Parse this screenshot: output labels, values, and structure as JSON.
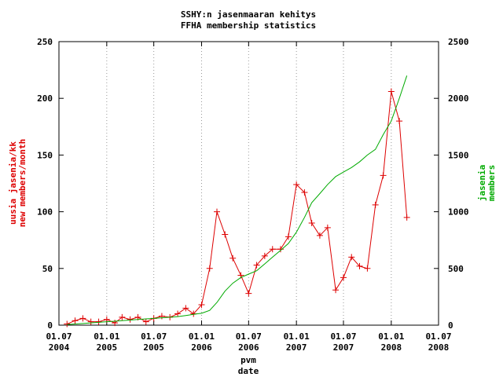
{
  "chart_data": {
    "type": "line",
    "title": "SSHY:n jasenmaaran kehitys",
    "subtitle": "FFHA membership statistics",
    "x_label": [
      "pvm",
      "date"
    ],
    "y_label": [
      "uusia jasenia/kk",
      "new members/month"
    ],
    "y2_label": [
      "jasenia",
      "members"
    ],
    "x": [
      "2004-08",
      "2004-09",
      "2004-10",
      "2004-11",
      "2004-12",
      "2005-01",
      "2005-02",
      "2005-03",
      "2005-04",
      "2005-05",
      "2005-06",
      "2005-07",
      "2005-08",
      "2005-09",
      "2005-10",
      "2005-11",
      "2005-12",
      "2006-01",
      "2006-02",
      "2006-03",
      "2006-04",
      "2006-05",
      "2006-06",
      "2006-07",
      "2006-08",
      "2006-09",
      "2006-10",
      "2006-11",
      "2006-12",
      "2007-01",
      "2007-02",
      "2007-03",
      "2007-04",
      "2007-05",
      "2007-06",
      "2007-07",
      "2007-08",
      "2007-09",
      "2007-10",
      "2007-11",
      "2007-12",
      "2008-01",
      "2008-02",
      "2008-03"
    ],
    "series": [
      {
        "name": "new members/month",
        "color": "#dd0000",
        "axis": "y",
        "values": [
          1,
          4,
          6,
          3,
          3,
          5,
          2,
          7,
          5,
          7,
          3,
          6,
          8,
          7,
          10,
          15,
          10,
          18,
          50,
          100,
          80,
          59,
          44,
          28,
          53,
          61,
          67,
          67,
          78,
          124,
          117,
          90,
          79,
          86,
          31,
          42,
          60,
          52,
          50,
          106,
          132,
          206,
          180,
          95
        ]
      },
      {
        "name": "members",
        "color": "#00aa00",
        "axis": "y2",
        "values": [
          5,
          10,
          15,
          20,
          25,
          30,
          35,
          40,
          45,
          50,
          55,
          60,
          65,
          70,
          75,
          85,
          95,
          105,
          130,
          200,
          300,
          370,
          420,
          450,
          480,
          540,
          600,
          660,
          720,
          820,
          950,
          1080,
          1160,
          1240,
          1310,
          1350,
          1390,
          1440,
          1500,
          1550,
          1680,
          1800,
          2000,
          2200
        ]
      }
    ],
    "xlim": [
      "2004-07-01",
      "2008-07-01"
    ],
    "xticks": [
      {
        "value": "2004-07-01",
        "label": "01.07\n2004"
      },
      {
        "value": "2005-01-01",
        "label": "01.01\n2005"
      },
      {
        "value": "2005-07-01",
        "label": "01.07\n2005"
      },
      {
        "value": "2006-01-01",
        "label": "01.01\n2006"
      },
      {
        "value": "2006-07-01",
        "label": "01.07\n2006"
      },
      {
        "value": "2007-01-01",
        "label": "01.01\n2007"
      },
      {
        "value": "2007-07-01",
        "label": "01.07\n2007"
      },
      {
        "value": "2008-01-01",
        "label": "01.01\n2008"
      },
      {
        "value": "2008-07-01",
        "label": "01.07\n2008"
      }
    ],
    "ylim": [
      0,
      250
    ],
    "yticks": [
      0,
      50,
      100,
      150,
      200,
      250
    ],
    "y2lim": [
      0,
      2500
    ],
    "y2ticks": [
      0,
      500,
      1000,
      1500,
      2000,
      2500
    ],
    "grid": "x"
  }
}
